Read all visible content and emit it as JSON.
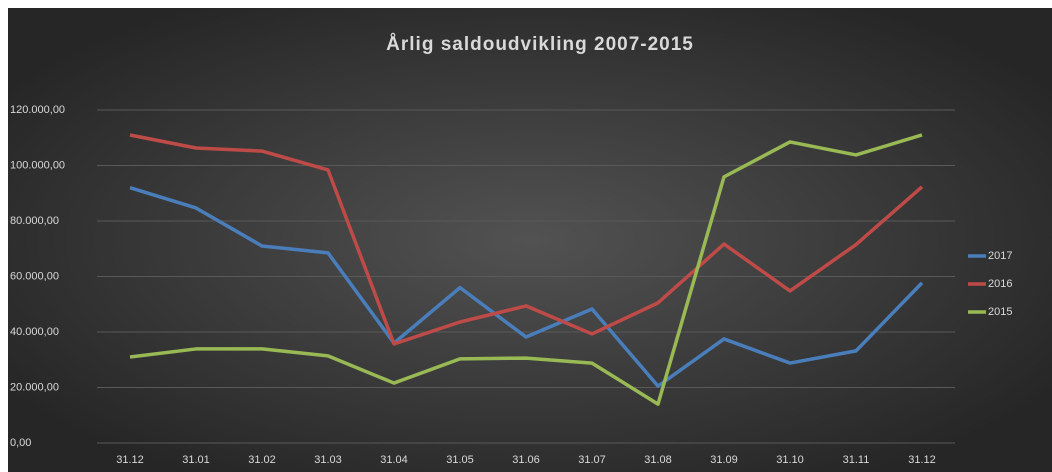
{
  "chart_data": {
    "type": "line",
    "title": "Årlig saldoudvikling 2007-2015",
    "categories": [
      "31.12",
      "31.01",
      "31.02",
      "31.03",
      "31.04",
      "31.05",
      "31.06",
      "31.07",
      "31.08",
      "31.09",
      "31.10",
      "31.11",
      "31.12"
    ],
    "series": [
      {
        "name": "2017",
        "color": "#4a7ebb",
        "values": [
          92000,
          84700,
          71000,
          68500,
          36000,
          56000,
          38200,
          48300,
          20500,
          37500,
          28800,
          33200,
          57700
        ]
      },
      {
        "name": "2016",
        "color": "#be4b48",
        "values": [
          111000,
          106300,
          105200,
          98400,
          35700,
          43600,
          49400,
          39300,
          50500,
          71700,
          54800,
          71500,
          92300
        ]
      },
      {
        "name": "2015",
        "color": "#98b954",
        "values": [
          31000,
          33900,
          33900,
          31400,
          21600,
          30300,
          30600,
          28800,
          14000,
          95900,
          108500,
          103800,
          111000
        ]
      }
    ],
    "ylim": [
      0,
      120000
    ],
    "yticks": [
      {
        "value": 0,
        "label": "0,00"
      },
      {
        "value": 20000,
        "label": "20.000,00"
      },
      {
        "value": 40000,
        "label": "40.000,00"
      },
      {
        "value": 60000,
        "label": "60.000,00"
      },
      {
        "value": 80000,
        "label": "80.000,00"
      },
      {
        "value": 100000,
        "label": "100.000,00"
      },
      {
        "value": 120000,
        "label": "120.000,00"
      }
    ],
    "grid": true,
    "legend": "right"
  }
}
